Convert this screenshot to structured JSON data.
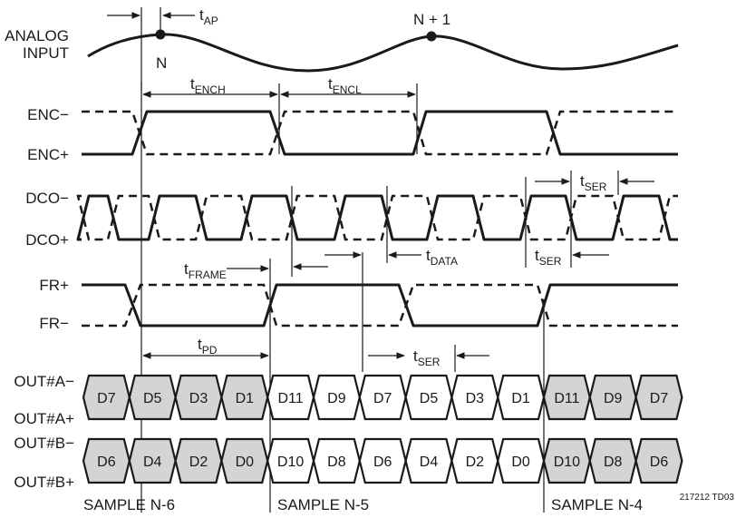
{
  "signals": {
    "analog_line1": "ANALOG",
    "analog_line2": "INPUT",
    "enc_minus": "ENC−",
    "enc_plus": "ENC+",
    "dco_minus": "DCO−",
    "dco_plus": "DCO+",
    "fr_plus": "FR+",
    "fr_minus": "FR−",
    "outa_minus": "OUT#A−",
    "outa_plus": "OUT#A+",
    "outb_minus": "OUT#B−",
    "outb_plus": "OUT#B+"
  },
  "points": {
    "n": "N",
    "n_plus_1": "N + 1"
  },
  "timing": {
    "t_ap": {
      "base": "t",
      "sub": "AP"
    },
    "t_ench": {
      "base": "t",
      "sub": "ENCH"
    },
    "t_encl": {
      "base": "t",
      "sub": "ENCL"
    },
    "t_ser_top": {
      "base": "t",
      "sub": "SER"
    },
    "t_ser_mid": {
      "base": "t",
      "sub": "SER"
    },
    "t_ser_out": {
      "base": "t",
      "sub": "SER"
    },
    "t_frame": {
      "base": "t",
      "sub": "FRAME"
    },
    "t_data": {
      "base": "t",
      "sub": "DATA"
    },
    "t_pd": {
      "base": "t",
      "sub": "PD"
    }
  },
  "out_a_cells": [
    "D7",
    "D5",
    "D3",
    "D1",
    "D11",
    "D9",
    "D7",
    "D5",
    "D3",
    "D1",
    "D11",
    "D9",
    "D7"
  ],
  "out_b_cells": [
    "D6",
    "D4",
    "D2",
    "D0",
    "D10",
    "D8",
    "D6",
    "D4",
    "D2",
    "D0",
    "D10",
    "D8",
    "D6"
  ],
  "out_shaded": [
    true,
    true,
    true,
    true,
    false,
    false,
    false,
    false,
    false,
    false,
    true,
    true,
    true
  ],
  "samples": [
    "SAMPLE N-6",
    "SAMPLE N-5",
    "SAMPLE N-4"
  ],
  "figure_id": "217212 TD03",
  "colors": {
    "ink": "#1a1a1a",
    "shade": "#d4d4d4"
  }
}
